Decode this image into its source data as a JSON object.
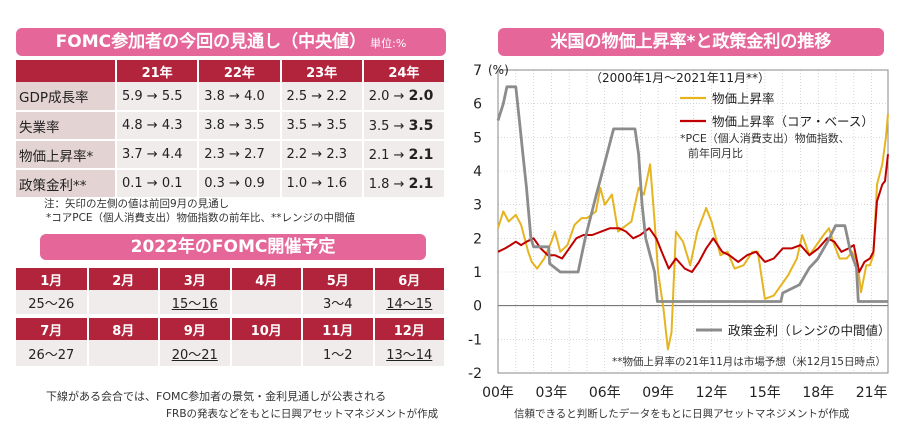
{
  "fomc": {
    "title": "FOMC参加者の今回の見通し（中央値）",
    "unit": "単位:%",
    "headers": [
      "",
      "21年",
      "22年",
      "23年",
      "24年"
    ],
    "rows": [
      {
        "label": "GDP成長率",
        "values": [
          [
            "5.9 → ",
            "5.5"
          ],
          [
            "3.8 → ",
            "4.0"
          ],
          [
            "2.5 → ",
            "2.2"
          ],
          [
            "2.0 → ",
            "2.0"
          ]
        ]
      },
      {
        "label": "失業率",
        "values": [
          [
            "4.8 → ",
            "4.3"
          ],
          [
            "3.8 → ",
            "3.5"
          ],
          [
            "3.5 → ",
            "3.5"
          ],
          [
            "3.5 → ",
            "3.5"
          ]
        ]
      },
      {
        "label": "物価上昇率*",
        "values": [
          [
            "3.7 → ",
            "4.4"
          ],
          [
            "2.3 → ",
            "2.7"
          ],
          [
            "2.2 → ",
            "2.3"
          ],
          [
            "2.1 → ",
            "2.1"
          ]
        ]
      },
      {
        "label": "政策金利**",
        "values": [
          [
            "0.1 → ",
            "0.1"
          ],
          [
            "0.3 → ",
            "0.9"
          ],
          [
            "1.0 → ",
            "1.6"
          ],
          [
            "1.8 → ",
            "2.1"
          ]
        ]
      }
    ],
    "note1": "注：矢印の左側の値は前回9月の見通し",
    "note2": "*コアPCE（個人消費支出）物価指数の前年比、**レンジの中間値"
  },
  "meetings": {
    "title": "2022年のFOMC開催予定",
    "months_row1": [
      "1月",
      "2月",
      "3月",
      "4月",
      "5月",
      "6月"
    ],
    "dates_row1": [
      "25〜26",
      "",
      "15〜16",
      "",
      "3〜4",
      "14〜15"
    ],
    "underline_row1": [
      false,
      false,
      true,
      false,
      false,
      true
    ],
    "months_row2": [
      "7月",
      "8月",
      "9月",
      "10月",
      "11月",
      "12月"
    ],
    "dates_row2": [
      "26〜27",
      "",
      "20〜21",
      "",
      "1〜2",
      "13〜14"
    ],
    "underline_row2": [
      false,
      false,
      true,
      false,
      false,
      true
    ],
    "footnote": "下線がある会合では、FOMC参加者の景気・金利見通しが公表される",
    "source": "FRBの発表などをもとに日興アセットマネジメントが作成"
  },
  "chart": {
    "title": "米国の物価上昇率*と政策金利の推移",
    "source": "信頼できると判断したデータをもとに日興アセットマネジメントが作成"
  },
  "chart_data": {
    "type": "line",
    "subtitle": "（2000年1月〜2021年11月**）",
    "ylabel": "(%)",
    "ylim": [
      -2,
      7
    ],
    "xlim": [
      2000.0,
      2021.92
    ],
    "yticks": [
      -2,
      -1,
      0,
      1,
      2,
      3,
      4,
      5,
      6,
      7
    ],
    "xticks": [
      2000,
      2003,
      2006,
      2009,
      2012,
      2015,
      2018,
      2021
    ],
    "xtick_labels": [
      "00年",
      "03年",
      "06年",
      "09年",
      "12年",
      "15年",
      "18年",
      "21年"
    ],
    "grid": true,
    "legend_position": "top-right",
    "annotations": [
      "*PCE（個人消費支出）物価指数、",
      "前年同月比",
      "**物価上昇率の21年11月は市場予想（米12月15日時点）"
    ],
    "series": [
      {
        "name": "物価上昇率",
        "color": "#e6b421",
        "points": [
          [
            2000.0,
            2.3
          ],
          [
            2000.3,
            2.8
          ],
          [
            2000.6,
            2.5
          ],
          [
            2001.0,
            2.7
          ],
          [
            2001.3,
            2.4
          ],
          [
            2001.7,
            1.6
          ],
          [
            2001.9,
            1.3
          ],
          [
            2002.2,
            1.1
          ],
          [
            2002.6,
            1.4
          ],
          [
            2003.0,
            1.9
          ],
          [
            2003.2,
            2.2
          ],
          [
            2003.5,
            1.6
          ],
          [
            2003.9,
            1.8
          ],
          [
            2004.3,
            2.4
          ],
          [
            2004.7,
            2.6
          ],
          [
            2005.0,
            2.6
          ],
          [
            2005.5,
            2.8
          ],
          [
            2005.75,
            3.5
          ],
          [
            2006.0,
            3.0
          ],
          [
            2006.4,
            3.3
          ],
          [
            2006.75,
            2.2
          ],
          [
            2007.0,
            2.3
          ],
          [
            2007.5,
            2.5
          ],
          [
            2007.9,
            3.5
          ],
          [
            2008.2,
            3.3
          ],
          [
            2008.55,
            4.2
          ],
          [
            2008.8,
            2.5
          ],
          [
            2009.0,
            1.0
          ],
          [
            2009.3,
            -0.1
          ],
          [
            2009.55,
            -1.3
          ],
          [
            2009.75,
            -0.8
          ],
          [
            2010.0,
            2.2
          ],
          [
            2010.4,
            1.9
          ],
          [
            2010.8,
            1.2
          ],
          [
            2011.2,
            2.2
          ],
          [
            2011.7,
            2.9
          ],
          [
            2012.0,
            2.5
          ],
          [
            2012.5,
            1.5
          ],
          [
            2012.9,
            1.6
          ],
          [
            2013.3,
            1.1
          ],
          [
            2013.8,
            1.2
          ],
          [
            2014.3,
            1.6
          ],
          [
            2014.6,
            1.6
          ],
          [
            2015.0,
            0.2
          ],
          [
            2015.5,
            0.3
          ],
          [
            2015.9,
            0.6
          ],
          [
            2016.3,
            0.9
          ],
          [
            2016.8,
            1.4
          ],
          [
            2017.1,
            2.1
          ],
          [
            2017.5,
            1.5
          ],
          [
            2017.9,
            1.8
          ],
          [
            2018.3,
            2.1
          ],
          [
            2018.6,
            2.3
          ],
          [
            2018.9,
            1.8
          ],
          [
            2019.2,
            1.4
          ],
          [
            2019.6,
            1.4
          ],
          [
            2019.9,
            1.6
          ],
          [
            2020.2,
            1.3
          ],
          [
            2020.4,
            0.4
          ],
          [
            2020.7,
            1.2
          ],
          [
            2020.9,
            1.2
          ],
          [
            2021.1,
            1.5
          ],
          [
            2021.3,
            3.6
          ],
          [
            2021.6,
            4.2
          ],
          [
            2021.8,
            5.0
          ],
          [
            2021.92,
            5.7
          ]
        ]
      },
      {
        "name": "物価上昇率（コア・ベース）",
        "color": "#c00000",
        "points": [
          [
            2000.0,
            1.6
          ],
          [
            2000.4,
            1.7
          ],
          [
            2000.7,
            1.8
          ],
          [
            2001.0,
            1.9
          ],
          [
            2001.3,
            1.8
          ],
          [
            2001.6,
            1.9
          ],
          [
            2002.0,
            2.0
          ],
          [
            2002.4,
            1.7
          ],
          [
            2002.8,
            1.5
          ],
          [
            2003.2,
            1.5
          ],
          [
            2003.6,
            1.4
          ],
          [
            2004.0,
            1.7
          ],
          [
            2004.4,
            2.0
          ],
          [
            2004.8,
            2.1
          ],
          [
            2005.3,
            2.1
          ],
          [
            2005.8,
            2.2
          ],
          [
            2006.3,
            2.3
          ],
          [
            2006.8,
            2.3
          ],
          [
            2007.2,
            2.2
          ],
          [
            2007.6,
            2.0
          ],
          [
            2008.0,
            2.1
          ],
          [
            2008.5,
            2.3
          ],
          [
            2008.9,
            2.0
          ],
          [
            2009.2,
            1.6
          ],
          [
            2009.6,
            1.1
          ],
          [
            2010.0,
            1.4
          ],
          [
            2010.5,
            1.1
          ],
          [
            2010.9,
            1.0
          ],
          [
            2011.3,
            1.3
          ],
          [
            2011.7,
            1.7
          ],
          [
            2012.1,
            2.0
          ],
          [
            2012.6,
            1.6
          ],
          [
            2013.0,
            1.5
          ],
          [
            2013.5,
            1.3
          ],
          [
            2014.0,
            1.5
          ],
          [
            2014.5,
            1.6
          ],
          [
            2015.0,
            1.3
          ],
          [
            2015.5,
            1.4
          ],
          [
            2016.0,
            1.7
          ],
          [
            2016.5,
            1.7
          ],
          [
            2017.0,
            1.8
          ],
          [
            2017.5,
            1.5
          ],
          [
            2018.0,
            1.7
          ],
          [
            2018.5,
            2.0
          ],
          [
            2018.9,
            1.9
          ],
          [
            2019.3,
            1.6
          ],
          [
            2019.7,
            1.7
          ],
          [
            2020.0,
            1.8
          ],
          [
            2020.3,
            1.0
          ],
          [
            2020.6,
            1.3
          ],
          [
            2020.9,
            1.4
          ],
          [
            2021.1,
            1.6
          ],
          [
            2021.3,
            3.1
          ],
          [
            2021.6,
            3.6
          ],
          [
            2021.75,
            3.7
          ],
          [
            2021.92,
            4.5
          ]
        ]
      },
      {
        "name": "政策金利（レンジの中間値）",
        "color": "#8c8c8c",
        "points": [
          [
            2000.0,
            5.5
          ],
          [
            2000.3,
            6.0
          ],
          [
            2000.5,
            6.5
          ],
          [
            2001.0,
            6.5
          ],
          [
            2001.2,
            5.5
          ],
          [
            2001.4,
            4.5
          ],
          [
            2001.6,
            3.5
          ],
          [
            2001.85,
            2.0
          ],
          [
            2002.0,
            1.75
          ],
          [
            2002.85,
            1.75
          ],
          [
            2002.9,
            1.25
          ],
          [
            2003.5,
            1.0
          ],
          [
            2004.5,
            1.0
          ],
          [
            2004.9,
            2.0
          ],
          [
            2005.5,
            3.25
          ],
          [
            2006.0,
            4.25
          ],
          [
            2006.5,
            5.25
          ],
          [
            2007.7,
            5.25
          ],
          [
            2007.9,
            4.5
          ],
          [
            2008.1,
            3.0
          ],
          [
            2008.3,
            2.0
          ],
          [
            2008.8,
            1.0
          ],
          [
            2008.96,
            0.125
          ],
          [
            2015.9,
            0.125
          ],
          [
            2016.0,
            0.375
          ],
          [
            2016.95,
            0.625
          ],
          [
            2017.5,
            1.125
          ],
          [
            2017.95,
            1.375
          ],
          [
            2018.5,
            1.875
          ],
          [
            2018.97,
            2.375
          ],
          [
            2019.5,
            2.375
          ],
          [
            2019.6,
            2.125
          ],
          [
            2019.8,
            1.625
          ],
          [
            2020.15,
            1.125
          ],
          [
            2020.25,
            0.125
          ],
          [
            2021.92,
            0.125
          ]
        ]
      }
    ]
  }
}
